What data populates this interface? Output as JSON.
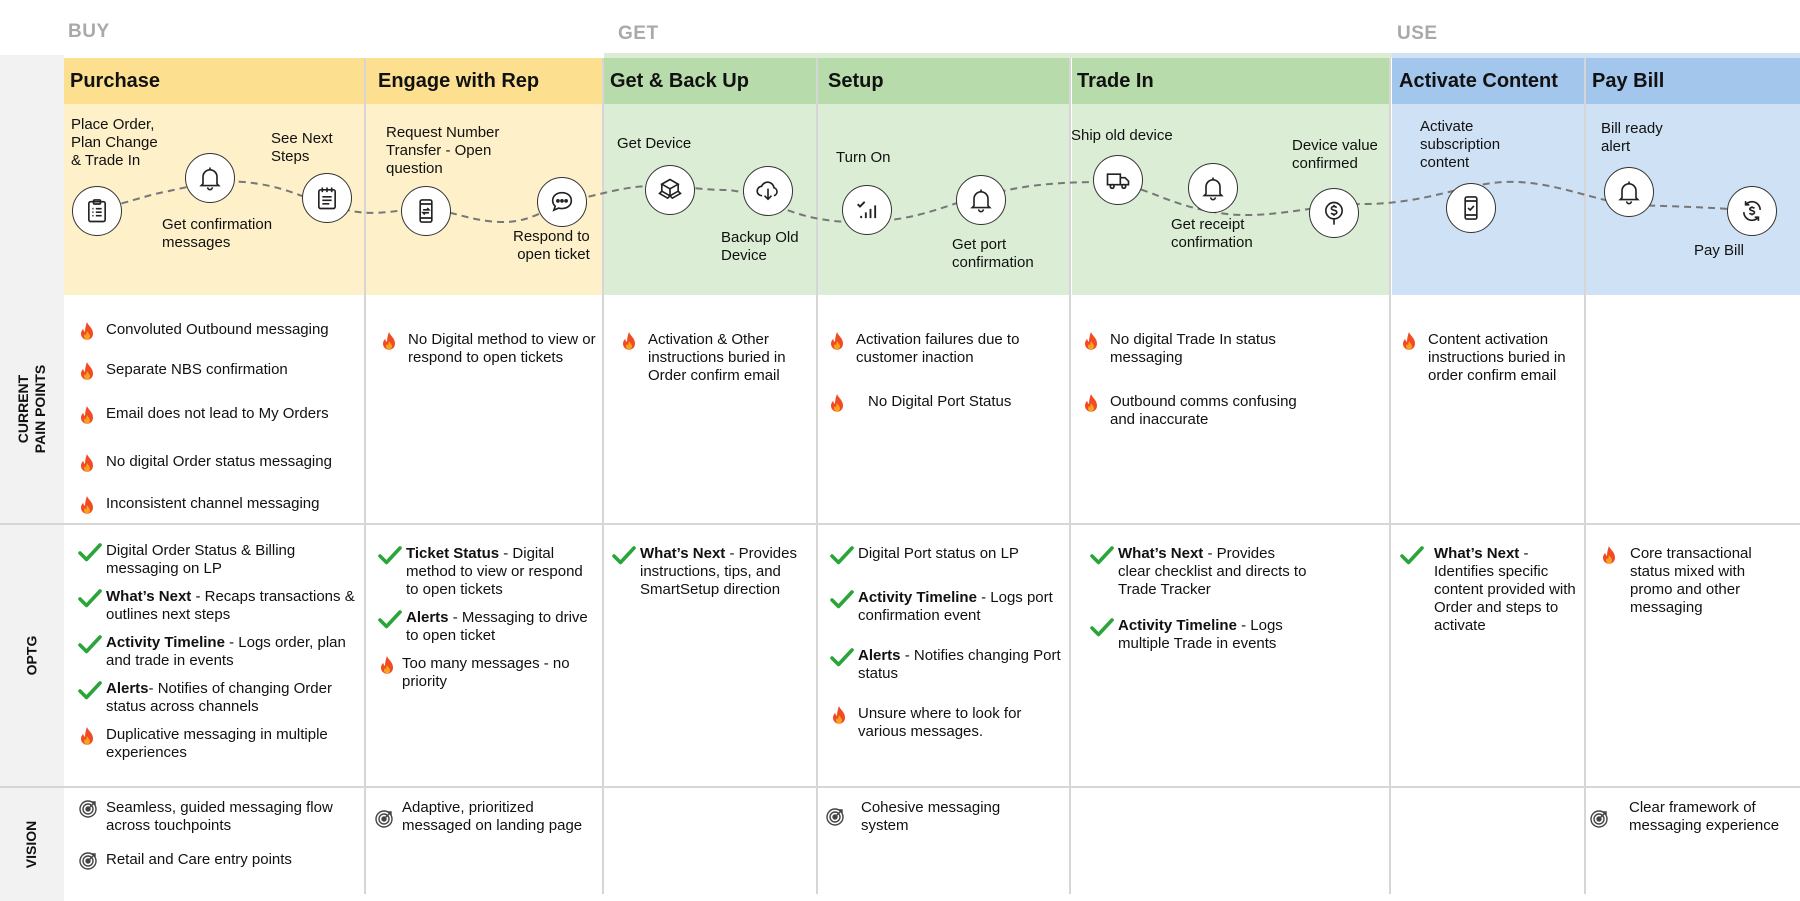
{
  "phases": {
    "buy": "BUY",
    "get": "GET",
    "use": "USE"
  },
  "row_labels": {
    "pain": "CURRENT\nPAIN POINTS",
    "optg": "OPTG",
    "vision": "VISION"
  },
  "stages": {
    "purchase": "Purchase",
    "engage": "Engage with Rep",
    "getbackup": "Get & Back Up",
    "setup": "Setup",
    "tradein": "Trade In",
    "activate": "Activate Content",
    "paybill": "Pay Bill"
  },
  "journey": {
    "place_order": "Place Order,\nPlan Change\n& Trade In",
    "get_confirmation": "Get confirmation\nmessages",
    "see_next_steps": "See Next\nSteps",
    "request_number": "Request Number\nTransfer - Open\nquestion",
    "respond_ticket": "Respond to\nopen ticket",
    "get_device": "Get Device",
    "backup_old": "Backup Old\nDevice",
    "turn_on": "Turn On",
    "get_port": "Get port\nconfirmation",
    "ship_old": "Ship old device",
    "get_receipt": "Get receipt\nconfirmation",
    "device_value": "Device value\nconfirmed",
    "activate_sub": "Activate\nsubscription\ncontent",
    "bill_ready": "Bill ready\nalert",
    "pay_bill": "Pay Bill"
  },
  "pain_points": {
    "purchase": [
      "Convoluted Outbound messaging",
      "Separate NBS confirmation",
      "Email does not lead to My Orders",
      "No digital Order status messaging",
      "Inconsistent channel messaging"
    ],
    "engage": [
      "No Digital method to view or respond to open tickets"
    ],
    "getbackup": [
      "Activation & Other instructions buried in Order confirm email"
    ],
    "setup": [
      "Activation failures due to customer inaction",
      "No Digital Port Status"
    ],
    "tradein": [
      "No digital Trade In status messaging",
      "Outbound comms confusing and inaccurate"
    ],
    "activate": [
      "Content activation instructions buried in order confirm email"
    ]
  },
  "optg": {
    "purchase": [
      {
        "bold": "",
        "text": "Digital Order Status  & Billing messaging on LP",
        "icon": "check"
      },
      {
        "bold": "What’s Next",
        "text": " - Recaps transactions & outlines  next steps",
        "icon": "check"
      },
      {
        "bold": "Activity Timeline",
        "text": " - Logs  order, plan and trade in events",
        "icon": "check"
      },
      {
        "bold": "Alerts",
        "text": "- Notifies of changing  Order status across channels",
        "icon": "check"
      },
      {
        "bold": "",
        "text": "Duplicative messaging in multiple experiences",
        "icon": "flame"
      }
    ],
    "engage": [
      {
        "bold": "Ticket Status",
        "text": " - Digital method to view or respond to open tickets",
        "icon": "check"
      },
      {
        "bold": "Alerts",
        "text": " - Messaging to drive to open ticket",
        "icon": "check"
      },
      {
        "bold": "",
        "text": "Too many messages - no priority",
        "icon": "flame"
      }
    ],
    "getbackup": [
      {
        "bold": "What’s Next",
        "text": " - Provides instructions, tips,  and SmartSetup direction",
        "icon": "check"
      }
    ],
    "setup": [
      {
        "bold": "",
        "text": " Digital Port status on LP",
        "icon": "check"
      },
      {
        "bold": "Activity Timeline",
        "text": "  - Logs port confirmation event",
        "icon": "check"
      },
      {
        "bold": "Alerts",
        "text": " - Notifies changing Port status",
        "icon": "check"
      },
      {
        "bold": "",
        "text": "Unsure where to look for various messages.",
        "icon": "flame"
      }
    ],
    "tradein": [
      {
        "bold": "What’s Next",
        "text": " - Provides clear checklist and directs to Trade Tracker",
        "icon": "check"
      },
      {
        "bold": "Activity Timeline",
        "text": " - Logs multiple Trade in events",
        "icon": "check"
      }
    ],
    "activate": [
      {
        "bold": "What’s Next",
        "text": " - Identifies specific content provided with Order and steps to activate",
        "icon": "check"
      }
    ],
    "paybill": [
      {
        "bold": "",
        "text": "Core transactional status mixed with promo and other messaging",
        "icon": "flame"
      }
    ]
  },
  "vision": {
    "purchase": [
      "Seamless, guided messaging flow across touchpoints",
      "Retail and Care entry points"
    ],
    "engage": [
      "Adaptive, prioritized messaged on landing page"
    ],
    "setup": [
      "Cohesive messaging system"
    ],
    "paybill": [
      "Clear framework of messaging experience"
    ]
  },
  "colors": {
    "buy_head": "#fde08f",
    "buy_body": "#fef0c9",
    "get_head": "#b7dbaa",
    "get_body": "#dbedd4",
    "use_head": "#a3c6ec",
    "use_body": "#cfe1f5",
    "check": "#2aa53a",
    "flame": "#f04b23"
  }
}
